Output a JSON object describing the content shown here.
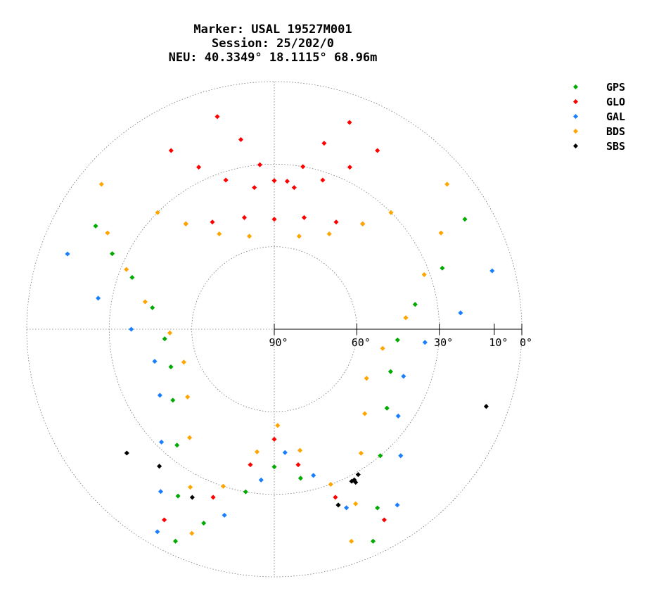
{
  "chart_data": {
    "type": "scatter",
    "projection": "polar-skyplot",
    "title_lines": [
      "Marker: USAL 19527M001",
      "Session: 25/202/0",
      "NEU: 40.3349° 18.1115° 68.96m"
    ],
    "elevation_ticks": [
      "90°",
      "60°",
      "30°",
      "10°",
      "0°"
    ],
    "elevation_tick_values": [
      90,
      60,
      30,
      10,
      0
    ],
    "azimuth_range": [
      0,
      360
    ],
    "elevation_range": [
      0,
      90
    ],
    "grid": true,
    "legend_position": "top-right",
    "series": [
      {
        "name": "GPS",
        "color": "#00aa00",
        "points": [
          [
            300,
            15
          ],
          [
            295,
            25
          ],
          [
            290,
            35
          ],
          [
            280,
            45
          ],
          [
            265,
            50
          ],
          [
            250,
            50
          ],
          [
            235,
            45
          ],
          [
            220,
            35
          ],
          [
            210,
            20
          ],
          [
            205,
            5
          ],
          [
            60,
            10
          ],
          [
            70,
            25
          ],
          [
            80,
            38
          ],
          [
            95,
            45
          ],
          [
            110,
            45
          ],
          [
            125,
            40
          ],
          [
            140,
            30
          ],
          [
            150,
            15
          ],
          [
            155,
            5
          ],
          [
            200,
            15
          ],
          [
            190,
            30
          ],
          [
            180,
            40
          ],
          [
            170,
            35
          ],
          [
            160,
            22
          ]
        ]
      },
      {
        "name": "GLO",
        "color": "#ff0000",
        "points": [
          [
            345,
            10
          ],
          [
            350,
            20
          ],
          [
            355,
            30
          ],
          [
            0,
            36
          ],
          [
            5,
            36
          ],
          [
            10,
            30
          ],
          [
            15,
            20
          ],
          [
            20,
            10
          ],
          [
            330,
            15
          ],
          [
            335,
            25
          ],
          [
            342,
            33
          ],
          [
            352,
            38
          ],
          [
            8,
            38
          ],
          [
            18,
            33
          ],
          [
            25,
            25
          ],
          [
            30,
            15
          ],
          [
            320,
            40
          ],
          [
            330,
            45
          ],
          [
            345,
            48
          ],
          [
            0,
            50
          ],
          [
            15,
            48
          ],
          [
            30,
            45
          ],
          [
            40,
            40
          ],
          [
            210,
            10
          ],
          [
            200,
            25
          ],
          [
            190,
            40
          ],
          [
            180,
            50
          ],
          [
            170,
            40
          ],
          [
            160,
            25
          ],
          [
            150,
            10
          ]
        ]
      },
      {
        "name": "GAL",
        "color": "#1a7fff",
        "points": [
          [
            290,
            10
          ],
          [
            280,
            25
          ],
          [
            270,
            38
          ],
          [
            255,
            45
          ],
          [
            240,
            42
          ],
          [
            225,
            32
          ],
          [
            215,
            18
          ],
          [
            210,
            5
          ],
          [
            75,
            8
          ],
          [
            85,
            22
          ],
          [
            95,
            35
          ],
          [
            110,
            40
          ],
          [
            125,
            35
          ],
          [
            135,
            25
          ],
          [
            145,
            12
          ],
          [
            195,
            20
          ],
          [
            185,
            35
          ],
          [
            175,
            45
          ],
          [
            165,
            35
          ],
          [
            158,
            20
          ]
        ]
      },
      {
        "name": "BDS",
        "color": "#ffa500",
        "points": [
          [
            310,
            8
          ],
          [
            300,
            20
          ],
          [
            292,
            32
          ],
          [
            282,
            42
          ],
          [
            268,
            52
          ],
          [
            250,
            55
          ],
          [
            232,
            50
          ],
          [
            218,
            40
          ],
          [
            208,
            25
          ],
          [
            202,
            10
          ],
          [
            50,
            8
          ],
          [
            60,
            20
          ],
          [
            70,
            32
          ],
          [
            85,
            42
          ],
          [
            100,
            50
          ],
          [
            118,
            52
          ],
          [
            133,
            45
          ],
          [
            145,
            35
          ],
          [
            155,
            20
          ],
          [
            160,
            8
          ],
          [
            315,
            30
          ],
          [
            320,
            40
          ],
          [
            330,
            50
          ],
          [
            345,
            55
          ],
          [
            15,
            55
          ],
          [
            30,
            50
          ],
          [
            40,
            40
          ],
          [
            45,
            30
          ],
          [
            198,
            30
          ],
          [
            188,
            45
          ],
          [
            178,
            55
          ],
          [
            168,
            45
          ],
          [
            160,
            30
          ]
        ]
      },
      {
        "name": "SBS",
        "color": "#000000",
        "points": [
          [
            152,
            28
          ],
          [
            152,
            27
          ],
          [
            153,
            28
          ],
          [
            150,
            29
          ],
          [
            160,
            22
          ],
          [
            230,
            20
          ],
          [
            220,
            25
          ],
          [
            206,
            22
          ],
          [
            110,
            8
          ]
        ]
      }
    ]
  }
}
